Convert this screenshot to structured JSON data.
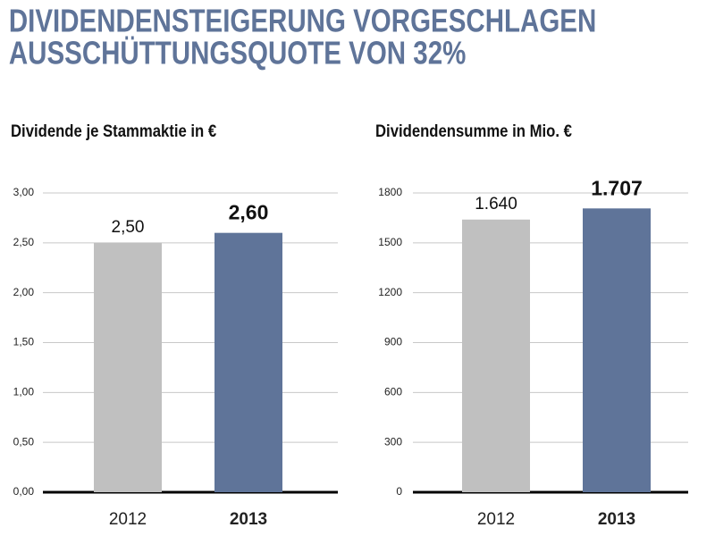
{
  "title": [
    "DIVIDENDENSTEIGERUNG VORGESCHLAGEN",
    "AUSSCHÜTTUNGSQUOTE VON 32%"
  ],
  "chart_data": [
    {
      "type": "bar",
      "title": "Dividende je Stammaktie in €",
      "categories": [
        "2012",
        "2013"
      ],
      "values": [
        2.5,
        2.6
      ],
      "value_labels": [
        "2,50",
        "2,60"
      ],
      "colors": [
        "#c0c0c0",
        "#5f7499"
      ],
      "ylim": [
        0,
        3
      ],
      "yticks": [
        {
          "value": 0,
          "label": "0,00"
        },
        {
          "value": 0.5,
          "label": "0,50"
        },
        {
          "value": 1,
          "label": "1,00"
        },
        {
          "value": 1.5,
          "label": "1,50"
        },
        {
          "value": 2,
          "label": "2,00"
        },
        {
          "value": 2.5,
          "label": "2,50"
        },
        {
          "value": 3,
          "label": "3,00"
        }
      ],
      "grid": true
    },
    {
      "type": "bar",
      "title": "Dividendensumme in Mio. €",
      "categories": [
        "2012",
        "2013"
      ],
      "values": [
        1640,
        1707
      ],
      "value_labels": [
        "1.640",
        "1.707"
      ],
      "colors": [
        "#c0c0c0",
        "#5f7499"
      ],
      "ylim": [
        0,
        1800
      ],
      "yticks": [
        0,
        300,
        600,
        900,
        1200,
        1500,
        1800
      ],
      "grid": true
    }
  ]
}
